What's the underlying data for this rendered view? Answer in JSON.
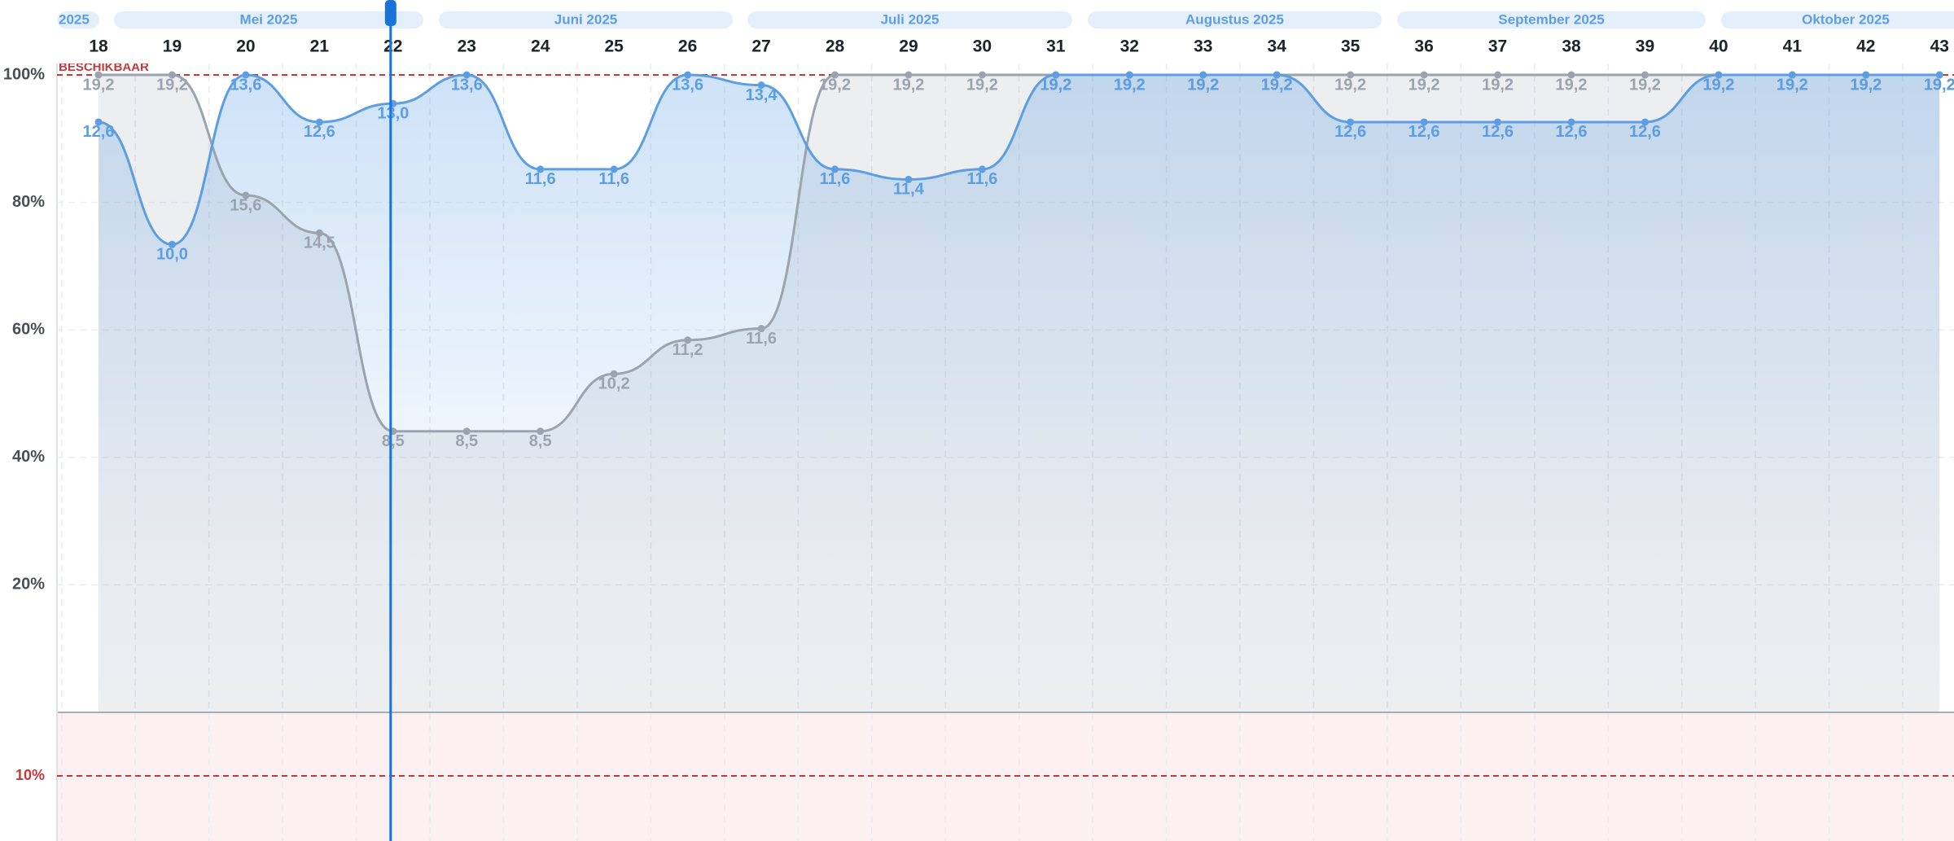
{
  "chart_data": {
    "type": "line",
    "months": [
      "2025",
      "Mei 2025",
      "Juni 2025",
      "Juli 2025",
      "Augustus 2025",
      "September 2025",
      "Oktober 2025"
    ],
    "categories": [
      "18",
      "19",
      "20",
      "21",
      "22",
      "23",
      "24",
      "25",
      "26",
      "27",
      "28",
      "29",
      "30",
      "31",
      "32",
      "33",
      "34",
      "35",
      "36",
      "37",
      "38",
      "39",
      "40",
      "41",
      "42",
      "43"
    ],
    "current": "22",
    "ylim": [
      0,
      100
    ],
    "yticks": [
      {
        "value": 20,
        "label": "20%"
      },
      {
        "value": 40,
        "label": "40%"
      },
      {
        "value": 60,
        "label": "60%"
      },
      {
        "value": 80,
        "label": "80%"
      },
      {
        "value": 100,
        "label": "100%"
      }
    ],
    "grid": true,
    "capacity_line": {
      "value": 100,
      "label": "BESCHIKBAAR",
      "color": "#c0393b"
    },
    "minimum_line": {
      "value": 10,
      "label": "10%",
      "color": "#c0393b"
    },
    "series": [
      {
        "color": "#9aa3ae",
        "values": [
          100,
          100,
          81.1,
          75.2,
          44.1,
          44.1,
          44.1,
          53.1,
          58.4,
          60.2,
          100,
          100,
          100,
          100,
          100,
          100,
          100,
          100,
          100,
          100,
          100,
          100,
          100,
          100,
          100,
          100
        ],
        "value_labels": [
          "19,2",
          "19,2",
          "15,6",
          "14,5",
          "8,5",
          "8,5",
          "8,5",
          "10,2",
          "11,2",
          "11,6",
          "19,2",
          "19,2",
          "19,2",
          "19,2",
          "19,2",
          "19,2",
          "19,2",
          "19,2",
          "19,2",
          "19,2",
          "19,2",
          "19,2",
          "19,2",
          "19,2",
          "19,2",
          "19,2"
        ]
      },
      {
        "color": "#5d9ee3",
        "values": [
          92.6,
          73.4,
          100,
          92.6,
          95.5,
          100,
          85.2,
          85.2,
          100,
          98.4,
          85.2,
          83.6,
          85.2,
          100,
          100,
          100,
          100,
          92.6,
          92.6,
          92.6,
          92.6,
          92.6,
          100,
          100,
          100,
          100
        ],
        "value_labels": [
          "12,6",
          "10,0",
          "13,6",
          "12,6",
          "13,0",
          "13,6",
          "11,6",
          "11,6",
          "13,6",
          "13,4",
          "11,6",
          "11,4",
          "11,6",
          "19,2",
          "19,2",
          "19,2",
          "19,2",
          "12,6",
          "12,6",
          "12,6",
          "12,6",
          "12,6",
          "19,2",
          "19,2",
          "19,2",
          "19,2"
        ]
      }
    ]
  }
}
